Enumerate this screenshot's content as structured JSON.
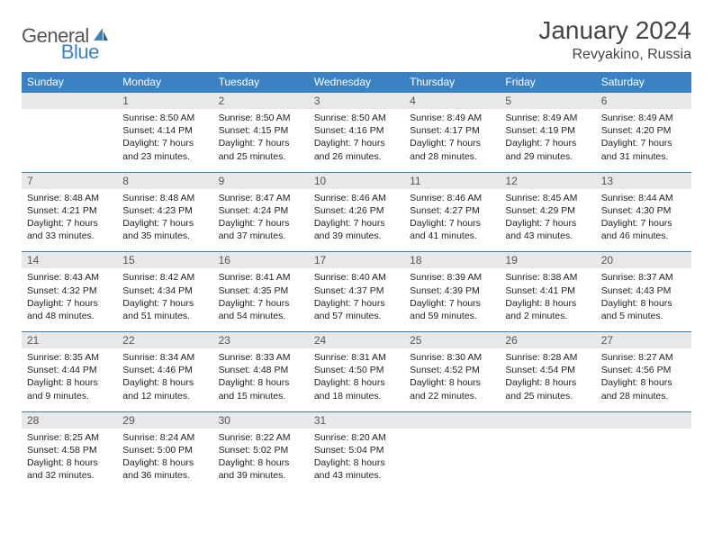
{
  "logo": {
    "text1": "General",
    "text2": "Blue"
  },
  "title": "January 2024",
  "location": "Revyakino, Russia",
  "colors": {
    "header_bg": "#3b82c4",
    "daynum_bg": "#e8e8e8",
    "border": "#3b7bb0"
  },
  "days_of_week": [
    "Sunday",
    "Monday",
    "Tuesday",
    "Wednesday",
    "Thursday",
    "Friday",
    "Saturday"
  ],
  "weeks": [
    {
      "nums": [
        "",
        "1",
        "2",
        "3",
        "4",
        "5",
        "6"
      ],
      "cells": [
        null,
        {
          "sr": "Sunrise: 8:50 AM",
          "ss": "Sunset: 4:14 PM",
          "d1": "Daylight: 7 hours",
          "d2": "and 23 minutes."
        },
        {
          "sr": "Sunrise: 8:50 AM",
          "ss": "Sunset: 4:15 PM",
          "d1": "Daylight: 7 hours",
          "d2": "and 25 minutes."
        },
        {
          "sr": "Sunrise: 8:50 AM",
          "ss": "Sunset: 4:16 PM",
          "d1": "Daylight: 7 hours",
          "d2": "and 26 minutes."
        },
        {
          "sr": "Sunrise: 8:49 AM",
          "ss": "Sunset: 4:17 PM",
          "d1": "Daylight: 7 hours",
          "d2": "and 28 minutes."
        },
        {
          "sr": "Sunrise: 8:49 AM",
          "ss": "Sunset: 4:19 PM",
          "d1": "Daylight: 7 hours",
          "d2": "and 29 minutes."
        },
        {
          "sr": "Sunrise: 8:49 AM",
          "ss": "Sunset: 4:20 PM",
          "d1": "Daylight: 7 hours",
          "d2": "and 31 minutes."
        }
      ]
    },
    {
      "nums": [
        "7",
        "8",
        "9",
        "10",
        "11",
        "12",
        "13"
      ],
      "cells": [
        {
          "sr": "Sunrise: 8:48 AM",
          "ss": "Sunset: 4:21 PM",
          "d1": "Daylight: 7 hours",
          "d2": "and 33 minutes."
        },
        {
          "sr": "Sunrise: 8:48 AM",
          "ss": "Sunset: 4:23 PM",
          "d1": "Daylight: 7 hours",
          "d2": "and 35 minutes."
        },
        {
          "sr": "Sunrise: 8:47 AM",
          "ss": "Sunset: 4:24 PM",
          "d1": "Daylight: 7 hours",
          "d2": "and 37 minutes."
        },
        {
          "sr": "Sunrise: 8:46 AM",
          "ss": "Sunset: 4:26 PM",
          "d1": "Daylight: 7 hours",
          "d2": "and 39 minutes."
        },
        {
          "sr": "Sunrise: 8:46 AM",
          "ss": "Sunset: 4:27 PM",
          "d1": "Daylight: 7 hours",
          "d2": "and 41 minutes."
        },
        {
          "sr": "Sunrise: 8:45 AM",
          "ss": "Sunset: 4:29 PM",
          "d1": "Daylight: 7 hours",
          "d2": "and 43 minutes."
        },
        {
          "sr": "Sunrise: 8:44 AM",
          "ss": "Sunset: 4:30 PM",
          "d1": "Daylight: 7 hours",
          "d2": "and 46 minutes."
        }
      ]
    },
    {
      "nums": [
        "14",
        "15",
        "16",
        "17",
        "18",
        "19",
        "20"
      ],
      "cells": [
        {
          "sr": "Sunrise: 8:43 AM",
          "ss": "Sunset: 4:32 PM",
          "d1": "Daylight: 7 hours",
          "d2": "and 48 minutes."
        },
        {
          "sr": "Sunrise: 8:42 AM",
          "ss": "Sunset: 4:34 PM",
          "d1": "Daylight: 7 hours",
          "d2": "and 51 minutes."
        },
        {
          "sr": "Sunrise: 8:41 AM",
          "ss": "Sunset: 4:35 PM",
          "d1": "Daylight: 7 hours",
          "d2": "and 54 minutes."
        },
        {
          "sr": "Sunrise: 8:40 AM",
          "ss": "Sunset: 4:37 PM",
          "d1": "Daylight: 7 hours",
          "d2": "and 57 minutes."
        },
        {
          "sr": "Sunrise: 8:39 AM",
          "ss": "Sunset: 4:39 PM",
          "d1": "Daylight: 7 hours",
          "d2": "and 59 minutes."
        },
        {
          "sr": "Sunrise: 8:38 AM",
          "ss": "Sunset: 4:41 PM",
          "d1": "Daylight: 8 hours",
          "d2": "and 2 minutes."
        },
        {
          "sr": "Sunrise: 8:37 AM",
          "ss": "Sunset: 4:43 PM",
          "d1": "Daylight: 8 hours",
          "d2": "and 5 minutes."
        }
      ]
    },
    {
      "nums": [
        "21",
        "22",
        "23",
        "24",
        "25",
        "26",
        "27"
      ],
      "cells": [
        {
          "sr": "Sunrise: 8:35 AM",
          "ss": "Sunset: 4:44 PM",
          "d1": "Daylight: 8 hours",
          "d2": "and 9 minutes."
        },
        {
          "sr": "Sunrise: 8:34 AM",
          "ss": "Sunset: 4:46 PM",
          "d1": "Daylight: 8 hours",
          "d2": "and 12 minutes."
        },
        {
          "sr": "Sunrise: 8:33 AM",
          "ss": "Sunset: 4:48 PM",
          "d1": "Daylight: 8 hours",
          "d2": "and 15 minutes."
        },
        {
          "sr": "Sunrise: 8:31 AM",
          "ss": "Sunset: 4:50 PM",
          "d1": "Daylight: 8 hours",
          "d2": "and 18 minutes."
        },
        {
          "sr": "Sunrise: 8:30 AM",
          "ss": "Sunset: 4:52 PM",
          "d1": "Daylight: 8 hours",
          "d2": "and 22 minutes."
        },
        {
          "sr": "Sunrise: 8:28 AM",
          "ss": "Sunset: 4:54 PM",
          "d1": "Daylight: 8 hours",
          "d2": "and 25 minutes."
        },
        {
          "sr": "Sunrise: 8:27 AM",
          "ss": "Sunset: 4:56 PM",
          "d1": "Daylight: 8 hours",
          "d2": "and 28 minutes."
        }
      ]
    },
    {
      "nums": [
        "28",
        "29",
        "30",
        "31",
        "",
        "",
        ""
      ],
      "cells": [
        {
          "sr": "Sunrise: 8:25 AM",
          "ss": "Sunset: 4:58 PM",
          "d1": "Daylight: 8 hours",
          "d2": "and 32 minutes."
        },
        {
          "sr": "Sunrise: 8:24 AM",
          "ss": "Sunset: 5:00 PM",
          "d1": "Daylight: 8 hours",
          "d2": "and 36 minutes."
        },
        {
          "sr": "Sunrise: 8:22 AM",
          "ss": "Sunset: 5:02 PM",
          "d1": "Daylight: 8 hours",
          "d2": "and 39 minutes."
        },
        {
          "sr": "Sunrise: 8:20 AM",
          "ss": "Sunset: 5:04 PM",
          "d1": "Daylight: 8 hours",
          "d2": "and 43 minutes."
        },
        null,
        null,
        null
      ]
    }
  ]
}
